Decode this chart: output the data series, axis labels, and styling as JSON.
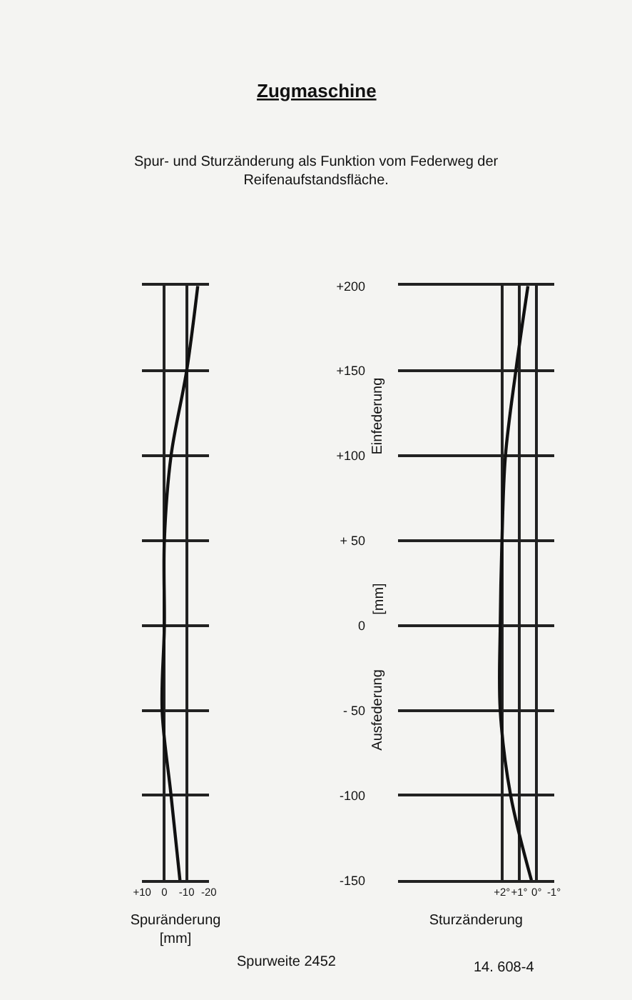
{
  "chart_data": [
    {
      "type": "other",
      "title": "Zugmaschine",
      "subtitle": "Spur- und Sturzänderung als Funktion vom Federweg der\nReifenaufstandsfläche."
    },
    {
      "type": "line",
      "xlabel": "Spuränderung\n[mm]",
      "annotations": [
        "Spurweite 2452"
      ],
      "series": [
        {
          "color": "#111111",
          "x": [
            -15,
            -10,
            -3,
            0,
            0,
            1,
            -3,
            -7
          ],
          "values": [
            200,
            150,
            100,
            50,
            0,
            -50,
            -100,
            -150
          ]
        }
      ],
      "xlim": [
        10,
        -20
      ],
      "xticks": [
        {
          "value": 10,
          "label": "+10"
        },
        0,
        -10,
        -20
      ],
      "ylim": [
        -150,
        200
      ],
      "yticks": [
        {
          "value": 200,
          "label": null
        },
        {
          "value": 150,
          "label": null
        },
        {
          "value": 100,
          "label": null
        },
        {
          "value": 50,
          "label": null
        },
        {
          "value": 0,
          "label": null
        },
        {
          "value": -50,
          "label": null
        },
        {
          "value": -100,
          "label": null
        },
        {
          "value": -150,
          "label": null
        }
      ],
      "grid": true,
      "tick_labels": "x"
    },
    {
      "type": "line",
      "xlabel": "Sturzänderung",
      "ylabel": "[mm]",
      "annotations": [
        "Einfederung",
        "Ausfederung",
        "14. 608-4"
      ],
      "series": [
        {
          "color": "#111111",
          "x": [
            0.5,
            1.2,
            1.8,
            2,
            2.1,
            2.1,
            1.5,
            0.3
          ],
          "values": [
            200,
            150,
            100,
            50,
            0,
            -50,
            -100,
            -150
          ]
        }
      ],
      "xlim": [
        8,
        -1
      ],
      "xticks": [
        {
          "value": 2,
          "label": "+2°"
        },
        {
          "value": 1,
          "label": "+1°"
        },
        {
          "value": 0,
          "label": "0°"
        },
        {
          "value": -1,
          "label": "-1°"
        }
      ],
      "ylim": [
        -150,
        200
      ],
      "yticks": [
        {
          "value": 200,
          "label": "+200"
        },
        {
          "value": 150,
          "label": "+150"
        },
        {
          "value": 100,
          "label": "+100"
        },
        {
          "value": 50,
          "label": "+ 50"
        },
        {
          "value": 0,
          "label": "0"
        },
        {
          "value": -50,
          "label": "- 50"
        },
        {
          "value": -100,
          "label": "-100"
        },
        {
          "value": -150,
          "label": "-150"
        }
      ],
      "grid": true
    }
  ]
}
